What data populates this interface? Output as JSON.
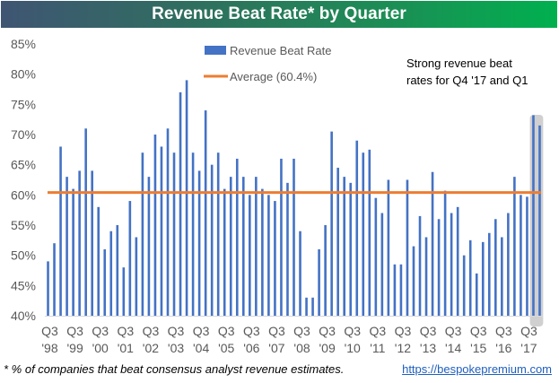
{
  "chart_data": {
    "type": "bar",
    "title": "Revenue Beat Rate* by Quarter",
    "xlabel": "",
    "ylabel": "",
    "ylim": [
      40,
      85
    ],
    "y_ticks": [
      "40%",
      "45%",
      "50%",
      "55%",
      "60%",
      "65%",
      "70%",
      "75%",
      "80%",
      "85%"
    ],
    "y_tick_values": [
      40,
      45,
      50,
      55,
      60,
      65,
      70,
      75,
      80,
      85
    ],
    "x_tick_labels": [
      {
        "q": "Q3",
        "y": "'98"
      },
      {
        "q": "Q3",
        "y": "'99"
      },
      {
        "q": "Q3",
        "y": "'00"
      },
      {
        "q": "Q3",
        "y": "'01"
      },
      {
        "q": "Q3",
        "y": "'02"
      },
      {
        "q": "Q3",
        "y": "'03"
      },
      {
        "q": "Q3",
        "y": "'04"
      },
      {
        "q": "Q3",
        "y": "'05"
      },
      {
        "q": "Q3",
        "y": "'06"
      },
      {
        "q": "Q3",
        "y": "'07"
      },
      {
        "q": "Q3",
        "y": "'08"
      },
      {
        "q": "Q3",
        "y": "'09"
      },
      {
        "q": "Q3",
        "y": "'10"
      },
      {
        "q": "Q3",
        "y": "'11"
      },
      {
        "q": "Q3",
        "y": "'12"
      },
      {
        "q": "Q3",
        "y": "'13"
      },
      {
        "q": "Q3",
        "y": "'14"
      },
      {
        "q": "Q3",
        "y": "'15"
      },
      {
        "q": "Q3",
        "y": "'16"
      },
      {
        "q": "Q3",
        "y": "'17"
      }
    ],
    "x_tick_every": 4,
    "categories_start": "Q3 1998",
    "categories_end": "Q1 2018",
    "series": [
      {
        "name": "Revenue Beat Rate",
        "color": "#4472c4",
        "values": [
          49,
          52,
          68,
          63,
          61,
          64,
          71,
          64,
          58,
          51,
          54,
          55,
          48,
          59,
          53,
          67,
          63,
          70,
          68,
          71,
          67,
          77,
          79,
          67,
          64,
          74,
          65,
          67,
          61,
          63,
          66,
          63,
          60,
          63,
          61,
          60,
          59,
          66,
          62,
          66,
          54,
          43,
          43,
          51,
          55,
          70.5,
          64.5,
          63,
          62,
          69,
          67,
          67.5,
          59.5,
          57,
          62.5,
          48.5,
          48.5,
          62.5,
          51.5,
          56.5,
          53,
          63.8,
          56,
          60.7,
          57,
          58,
          50,
          52.5,
          47,
          52.2,
          53.7,
          56,
          53,
          57,
          63,
          60,
          59.7,
          73.2,
          71.5
        ]
      }
    ],
    "average": {
      "name": "Average (60.4%)",
      "value": 60.4,
      "color": "#ed7d31"
    },
    "highlight": {
      "from_index": 77,
      "to_index": 78,
      "color": "#d0d0d0"
    },
    "legend": {
      "position": "top-center",
      "entries": [
        "Revenue Beat Rate",
        "Average (60.4%)"
      ]
    },
    "annotation": [
      "Strong revenue beat",
      "rates for Q4 '17 and Q1"
    ],
    "grid": false
  },
  "header": {
    "title": "Revenue Beat Rate* by Quarter"
  },
  "footer": {
    "note": "* % of companies that beat consensus analyst revenue estimates.",
    "link": "https://bespokepremium.com"
  }
}
